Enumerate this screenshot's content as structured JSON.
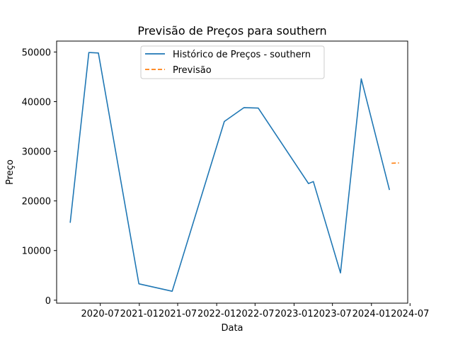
{
  "chart_data": {
    "type": "line",
    "title": "Previsão de Preços para southern",
    "xlabel": "Data",
    "ylabel": "Preço",
    "xlim": [
      "2019-12-08",
      "2024-06-20"
    ],
    "ylim": [
      -600,
      52200
    ],
    "x_ticks": [
      "2020-07-01",
      "2021-01-01",
      "2021-07-01",
      "2022-01-01",
      "2022-07-01",
      "2023-01-01",
      "2023-07-01",
      "2024-01-01",
      "2024-07-01"
    ],
    "x_tick_labels": [
      "2020-07",
      "2021-01",
      "2021-07",
      "2022-01",
      "2022-07",
      "2023-01",
      "2023-07",
      "2024-01",
      "2024-07"
    ],
    "y_ticks": [
      0,
      10000,
      20000,
      30000,
      40000,
      50000
    ],
    "y_tick_labels": [
      "0",
      "10000",
      "20000",
      "30000",
      "40000",
      "50000"
    ],
    "grid": false,
    "legend_position": "top-center",
    "series": [
      {
        "name": "Histórico de Preços - southern",
        "color": "#1f77b4",
        "style": "solid",
        "points": [
          {
            "x": "2020-02-10",
            "y": 15600
          },
          {
            "x": "2020-05-08",
            "y": 49900
          },
          {
            "x": "2020-06-22",
            "y": 49800
          },
          {
            "x": "2020-12-30",
            "y": 3300
          },
          {
            "x": "2021-06-05",
            "y": 1800
          },
          {
            "x": "2022-02-06",
            "y": 36000
          },
          {
            "x": "2022-05-10",
            "y": 38800
          },
          {
            "x": "2022-07-16",
            "y": 38700
          },
          {
            "x": "2023-03-10",
            "y": 23500
          },
          {
            "x": "2023-04-02",
            "y": 23900
          },
          {
            "x": "2023-08-08",
            "y": 5500
          },
          {
            "x": "2023-11-14",
            "y": 44600
          },
          {
            "x": "2024-03-26",
            "y": 22200
          }
        ]
      },
      {
        "name": "Previsão",
        "color": "#ff7f0e",
        "style": "dashed",
        "points": [
          {
            "x": "2024-04-05",
            "y": 27600
          },
          {
            "x": "2024-05-10",
            "y": 27650
          }
        ]
      }
    ]
  }
}
